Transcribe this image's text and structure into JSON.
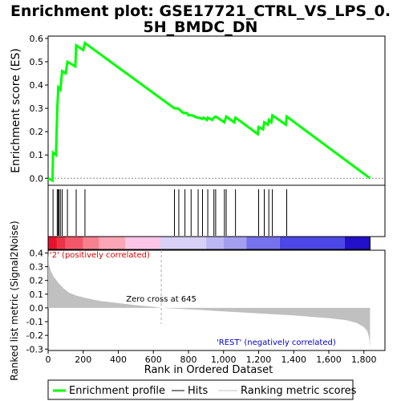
{
  "chart_data": {
    "type": "line",
    "title_line1": "Enrichment plot: GSE17721_CTRL_VS_LPS_0.",
    "title_line2": "5H_BMDC_DN",
    "es_panel": {
      "ylabel": "Enrichment score (ES)",
      "ylim": [
        -0.03,
        0.61
      ],
      "yticks": [
        0.0,
        0.1,
        0.2,
        0.3,
        0.4,
        0.5,
        0.6
      ],
      "ytick_labels": [
        "0.0",
        "0.1",
        "0.2",
        "0.3",
        "0.4",
        "0.5",
        "0.6"
      ],
      "line_color": "#00ff00",
      "points": [
        [
          0,
          0.0
        ],
        [
          25,
          -0.01
        ],
        [
          28,
          0.11
        ],
        [
          45,
          0.1
        ],
        [
          52,
          0.3
        ],
        [
          58,
          0.39
        ],
        [
          70,
          0.38
        ],
        [
          80,
          0.46
        ],
        [
          100,
          0.45
        ],
        [
          110,
          0.5
        ],
        [
          155,
          0.48
        ],
        [
          160,
          0.57
        ],
        [
          200,
          0.55
        ],
        [
          210,
          0.58
        ],
        [
          720,
          0.3
        ],
        [
          740,
          0.3
        ],
        [
          770,
          0.28
        ],
        [
          790,
          0.28
        ],
        [
          800,
          0.27
        ],
        [
          815,
          0.27
        ],
        [
          820,
          0.27
        ],
        [
          850,
          0.26
        ],
        [
          858,
          0.26
        ],
        [
          878,
          0.255
        ],
        [
          885,
          0.26
        ],
        [
          905,
          0.25
        ],
        [
          910,
          0.26
        ],
        [
          935,
          0.25
        ],
        [
          945,
          0.26
        ],
        [
          955,
          0.265
        ],
        [
          1005,
          0.24
        ],
        [
          1015,
          0.265
        ],
        [
          1060,
          0.24
        ],
        [
          1068,
          0.26
        ],
        [
          1195,
          0.19
        ],
        [
          1200,
          0.22
        ],
        [
          1225,
          0.21
        ],
        [
          1232,
          0.24
        ],
        [
          1252,
          0.23
        ],
        [
          1258,
          0.25
        ],
        [
          1272,
          0.24
        ],
        [
          1278,
          0.27
        ],
        [
          1355,
          0.23
        ],
        [
          1360,
          0.265
        ],
        [
          1835,
          0.0
        ]
      ]
    },
    "hits": [
      28,
      52,
      58,
      62,
      70,
      80,
      110,
      160,
      210,
      720,
      745,
      780,
      815,
      855,
      880,
      910,
      945,
      955,
      1005,
      1015,
      1068,
      1200,
      1232,
      1258,
      1278,
      1360
    ],
    "heatmap": {
      "segments": [
        {
          "end": 50,
          "color": "#e8112b"
        },
        {
          "end": 100,
          "color": "#ee3347"
        },
        {
          "end": 200,
          "color": "#f3566a"
        },
        {
          "end": 290,
          "color": "#f7808f"
        },
        {
          "end": 440,
          "color": "#fba6b5"
        },
        {
          "end": 640,
          "color": "#fcc6e8"
        },
        {
          "end": 900,
          "color": "#d8d0f7"
        },
        {
          "end": 1000,
          "color": "#bcb6f4"
        },
        {
          "end": 1130,
          "color": "#a49ef0"
        },
        {
          "end": 1320,
          "color": "#7671ec"
        },
        {
          "end": 1690,
          "color": "#4d47e8"
        },
        {
          "end": 1835,
          "color": "#2211c8"
        }
      ]
    },
    "metric_panel": {
      "ylabel": "Ranked list metric (Signal2Noise)",
      "xlabel": "Rank in Ordered Dataset",
      "ylim": [
        -0.31,
        0.42
      ],
      "yticks": [
        -0.3,
        -0.2,
        -0.1,
        0.0,
        0.1,
        0.2,
        0.3,
        0.4
      ],
      "ytick_labels": [
        "-0.3",
        "-0.2",
        "-0.1",
        "0.0",
        "0.1",
        "0.2",
        "0.3",
        "0.4"
      ],
      "xlim": [
        0,
        1920
      ],
      "xticks": [
        0,
        200,
        400,
        600,
        800,
        1000,
        1200,
        1400,
        1600,
        1800
      ],
      "xtick_labels": [
        "0",
        "200",
        "400",
        "600",
        "800",
        "1,000",
        "1,200",
        "1,400",
        "1,600",
        "1,800"
      ],
      "zero_cross": 645,
      "zero_cross_label": "Zero cross at 645",
      "pos_label": "'2' (positively correlated)",
      "neg_label": "'REST' (negatively correlated)",
      "fill_color": "#c0c0c0",
      "profile": [
        [
          0,
          0.4
        ],
        [
          5,
          0.32
        ],
        [
          15,
          0.27
        ],
        [
          30,
          0.23
        ],
        [
          60,
          0.18
        ],
        [
          90,
          0.14
        ],
        [
          120,
          0.11
        ],
        [
          160,
          0.09
        ],
        [
          220,
          0.07
        ],
        [
          300,
          0.05
        ],
        [
          400,
          0.035
        ],
        [
          500,
          0.02
        ],
        [
          600,
          0.008
        ],
        [
          645,
          0.0
        ],
        [
          800,
          -0.01
        ],
        [
          1000,
          -0.025
        ],
        [
          1200,
          -0.04
        ],
        [
          1400,
          -0.055
        ],
        [
          1600,
          -0.075
        ],
        [
          1700,
          -0.09
        ],
        [
          1760,
          -0.11
        ],
        [
          1800,
          -0.14
        ],
        [
          1820,
          -0.17
        ],
        [
          1830,
          -0.22
        ],
        [
          1835,
          -0.29
        ],
        [
          1835,
          0.0
        ]
      ]
    },
    "x_max_rank": 1835,
    "legend": {
      "items": [
        {
          "label": "Enrichment profile",
          "color": "#00ff00"
        },
        {
          "label": "Hits",
          "color": "#000000"
        },
        {
          "label": "Ranking metric scores",
          "color": "#c0c0c0"
        }
      ]
    }
  }
}
